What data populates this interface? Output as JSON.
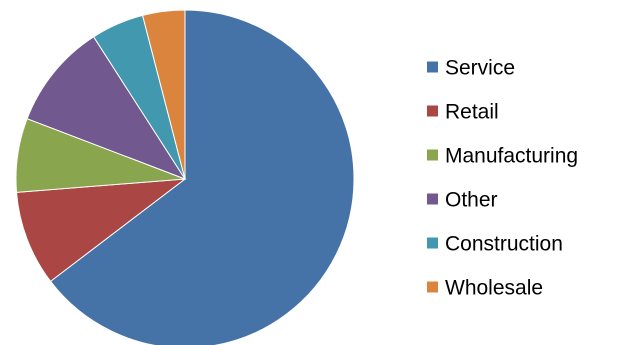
{
  "chart_data": {
    "type": "pie",
    "title": "",
    "categories": [
      "Service",
      "Retail",
      "Manufacturing",
      "Other",
      "Construction",
      "Wholesale"
    ],
    "values": [
      64,
      9,
      7,
      10,
      5,
      4
    ],
    "unit": "%",
    "start_angle_deg": 0,
    "direction": "clockwise",
    "colors": [
      "#4572A7",
      "#AA4643",
      "#89A54E",
      "#71588F",
      "#4198AF",
      "#DB843D"
    ],
    "legend_position": "right"
  }
}
